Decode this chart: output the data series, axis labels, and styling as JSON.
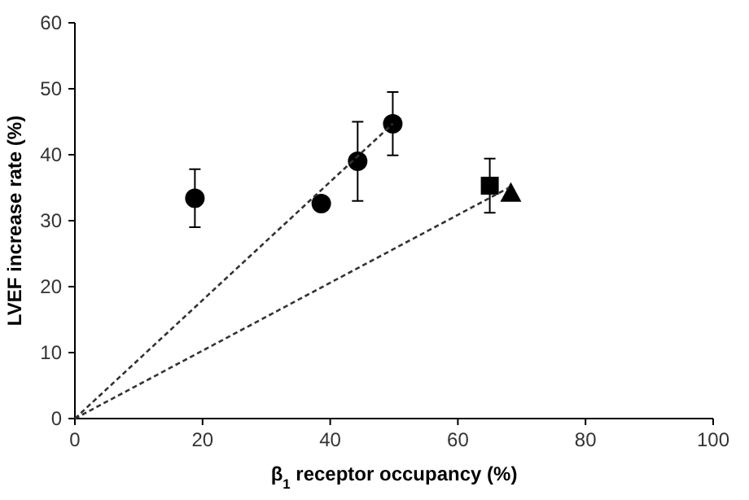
{
  "chart_data": {
    "type": "scatter",
    "xlabel": "β$_{1}$ receptor occupancy (%)",
    "ylabel": "LVEF increase rate (%)",
    "xlim": [
      0,
      100
    ],
    "xticks": [
      0,
      20,
      40,
      60,
      80,
      100
    ],
    "ylim": [
      0,
      60
    ],
    "yticks": [
      0,
      10,
      20,
      30,
      40,
      50,
      60
    ],
    "grid": false,
    "series": [
      {
        "color": "#000000",
        "marker": "circle",
        "x": [
          18.8,
          38.6,
          44.3,
          49.8
        ],
        "values": [
          33.4,
          32.6,
          39.0,
          44.7
        ],
        "errors": [
          4.4,
          null,
          6.0,
          4.8
        ]
      },
      {
        "color": "#000000",
        "marker": "square",
        "x": [
          65.0
        ],
        "values": [
          35.3
        ],
        "errors": [
          4.1
        ]
      },
      {
        "color": "#000000",
        "marker": "triangle",
        "x": [
          68.3
        ],
        "values": [
          34.1
        ],
        "errors": [
          null
        ]
      },
      {
        "type": "line",
        "color": "#333333",
        "marker": "none",
        "line_style": "dashed",
        "x": [
          0,
          49.8
        ],
        "values": [
          0,
          44.7
        ]
      },
      {
        "type": "line",
        "color": "#333333",
        "marker": "none",
        "line_style": "dashed",
        "x": [
          0,
          68.0
        ],
        "values": [
          0,
          35.0
        ]
      }
    ]
  }
}
